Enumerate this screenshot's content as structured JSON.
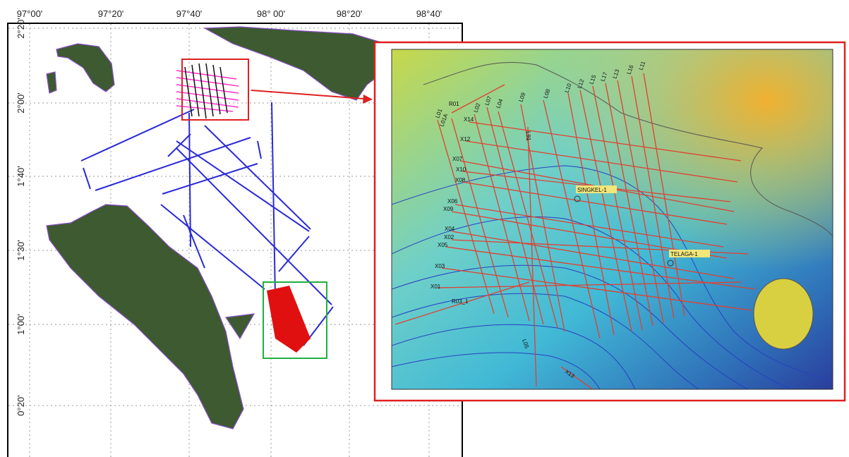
{
  "map": {
    "longitude_labels": [
      "97°00'",
      "97°20'",
      "97°40'",
      "98° 00'",
      "98°20'",
      "98°40'"
    ],
    "latitude_labels": [
      "2°20'",
      "2°00'",
      "1°40'",
      "1°30'",
      "1°00'",
      "0°20'"
    ]
  },
  "inset": {
    "line_labels": [
      "R01",
      "L01",
      "L01A",
      "X14",
      "L02",
      "L07",
      "L04",
      "L09",
      "L91",
      "L08",
      "L10",
      "L12",
      "L15",
      "L17",
      "L13",
      "L16",
      "L11",
      "X12",
      "X07",
      "X10",
      "X08",
      "X06",
      "X09",
      "X04",
      "X02",
      "X05",
      "X03",
      "X01",
      "R03_1",
      "L05",
      "X13"
    ],
    "wells": [
      "SINGKEL-1",
      "TELAGA-1"
    ]
  }
}
